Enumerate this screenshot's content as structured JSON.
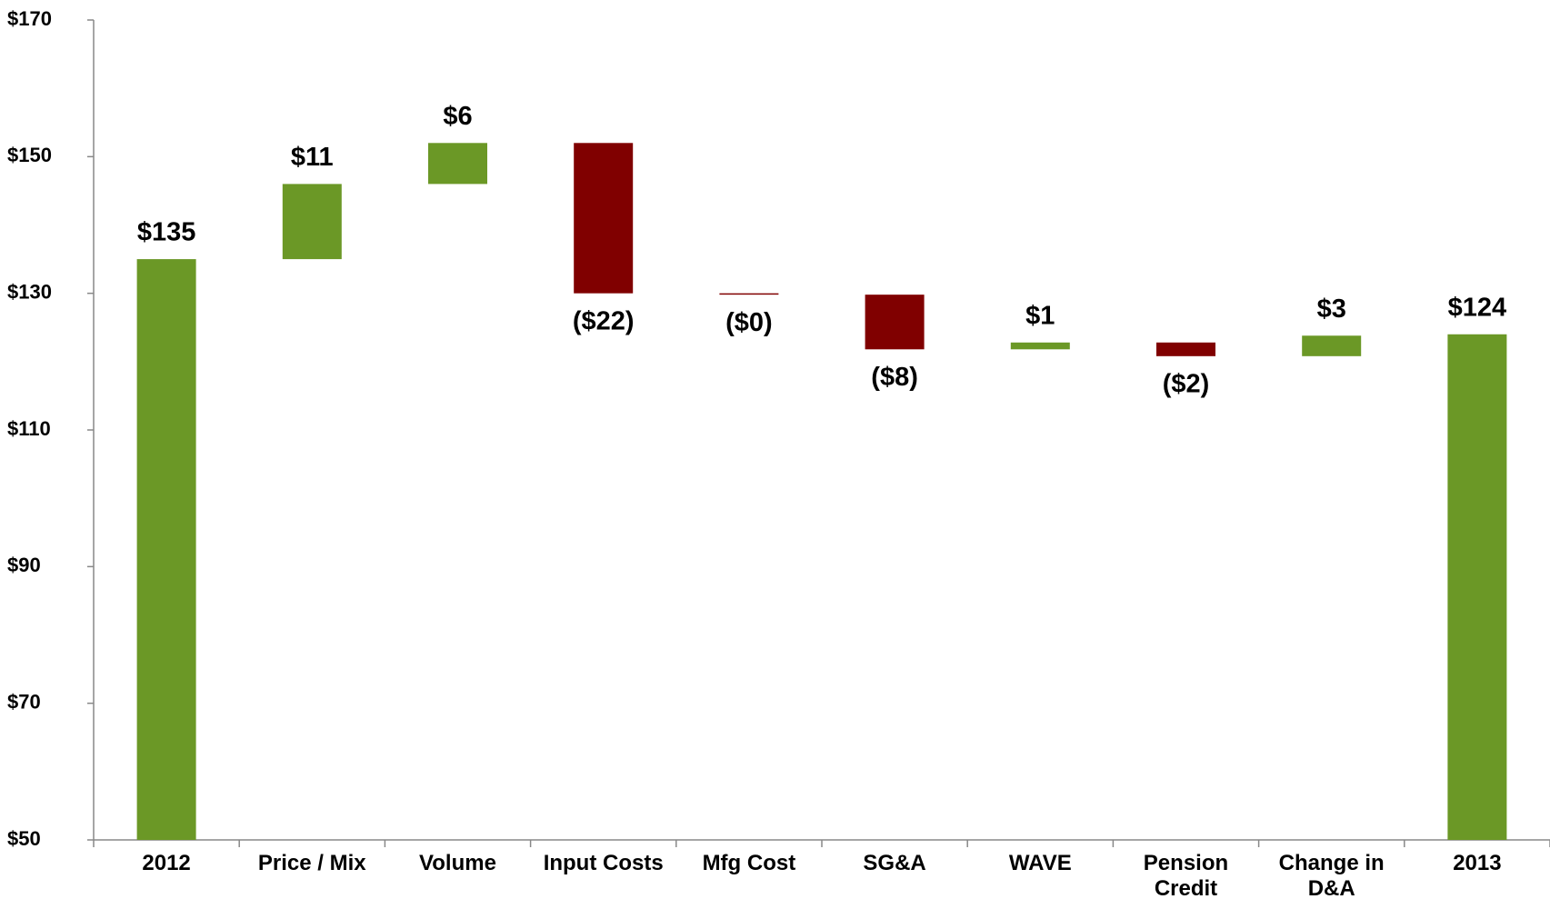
{
  "chart_data": {
    "type": "waterfall",
    "categories": [
      "2012",
      "Price / Mix",
      "Volume",
      "Input Costs",
      "Mfg Cost",
      "SG&A",
      "WAVE",
      "Pension Credit",
      "Change in D&A",
      "2013"
    ],
    "values": [
      135,
      11,
      6,
      -22,
      -0.2,
      -8,
      1,
      -2,
      3,
      124
    ],
    "value_labels": [
      "$135",
      "$11",
      "$6",
      "($22)",
      "($0)",
      "($8)",
      "$1",
      "($2)",
      "$3",
      "$124"
    ],
    "totals": [
      true,
      false,
      false,
      false,
      false,
      false,
      false,
      false,
      false,
      true
    ],
    "colors": {
      "increase": "#6b9826",
      "decrease": "#800000",
      "total": "#6b9826"
    },
    "ylim": [
      50,
      170
    ],
    "yticks": [
      {
        "value": 50,
        "label": "$50"
      },
      {
        "value": 70,
        "label": "$70"
      },
      {
        "value": 90,
        "label": "$90"
      },
      {
        "value": 110,
        "label": "$110"
      },
      {
        "value": 130,
        "label": "$130"
      },
      {
        "value": 150,
        "label": "$150"
      },
      {
        "value": 170,
        "label": "$170"
      }
    ],
    "grid": false
  }
}
